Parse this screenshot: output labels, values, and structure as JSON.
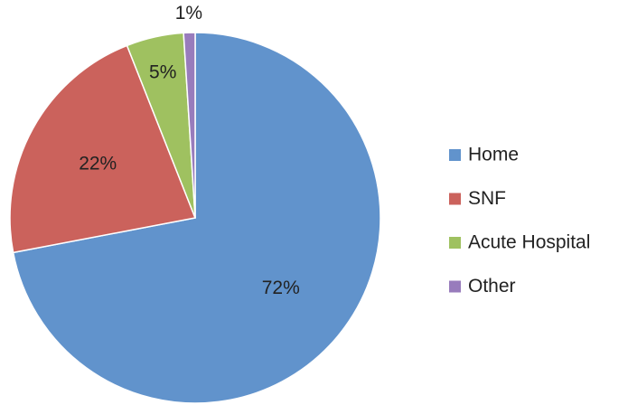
{
  "chart_data": {
    "type": "pie",
    "categories": [
      "Home",
      "SNF",
      "Acute Hospital",
      "Other"
    ],
    "values": [
      72,
      22,
      5,
      1
    ],
    "value_labels": [
      "72%",
      "22%",
      "5%",
      "1%"
    ],
    "colors": [
      "#6193cc",
      "#cb625c",
      "#9fc160",
      "#987cbc"
    ],
    "legend": "right"
  }
}
